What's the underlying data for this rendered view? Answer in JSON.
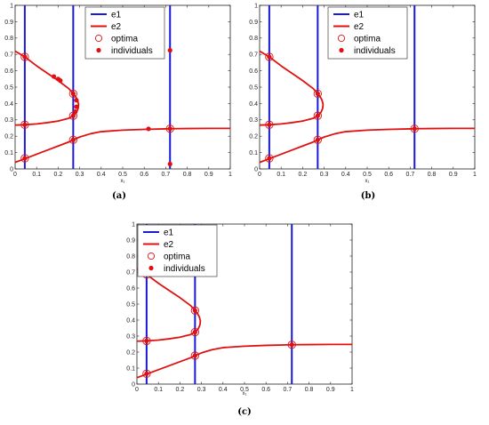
{
  "chart_data": [
    {
      "type": "line",
      "caption": "(a)",
      "xlabel": "x₁",
      "ylabel": "",
      "xlim": [
        0,
        1
      ],
      "ylim": [
        0,
        1
      ],
      "x_ticks": [
        "0",
        "0.1",
        "0.2",
        "0.3",
        "0.4",
        "0.5",
        "0.6",
        "0.7",
        "0.8",
        "0.9",
        "1"
      ],
      "y_ticks": [
        "0",
        "0.1",
        "0.2",
        "0.3",
        "0.4",
        "0.5",
        "0.6",
        "0.7",
        "0.8",
        "0.9",
        "1"
      ],
      "grid": false,
      "legend_position": "top-center",
      "legend": [
        "e1",
        "e2",
        "optima",
        "individuals"
      ],
      "colors": {
        "e1": "#1a1ad6",
        "e2": "#e01010",
        "markers": "#e01010"
      },
      "series": [
        {
          "name": "e1",
          "style": "vertical lines",
          "x": [
            0.045,
            0.27,
            0.72
          ]
        },
        {
          "name": "e2",
          "style": "curves",
          "branches": {
            "lower": [
              [
                0,
                0.04
              ],
              [
                0.05,
                0.065
              ],
              [
                0.1,
                0.09
              ],
              [
                0.15,
                0.115
              ],
              [
                0.2,
                0.14
              ],
              [
                0.25,
                0.165
              ],
              [
                0.27,
                0.178
              ],
              [
                0.3,
                0.195
              ],
              [
                0.35,
                0.215
              ],
              [
                0.4,
                0.228
              ],
              [
                0.5,
                0.237
              ],
              [
                0.6,
                0.242
              ],
              [
                0.7,
                0.245
              ],
              [
                0.72,
                0.246
              ],
              [
                0.8,
                0.247
              ],
              [
                0.9,
                0.248
              ],
              [
                1,
                0.248
              ]
            ],
            "fold": [
              [
                0,
                0.268
              ],
              [
                0.045,
                0.27
              ],
              [
                0.1,
                0.275
              ],
              [
                0.15,
                0.283
              ],
              [
                0.2,
                0.293
              ],
              [
                0.25,
                0.31
              ],
              [
                0.27,
                0.325
              ],
              [
                0.285,
                0.345
              ],
              [
                0.293,
                0.37
              ],
              [
                0.295,
                0.395
              ],
              [
                0.29,
                0.42
              ],
              [
                0.282,
                0.44
              ],
              [
                0.27,
                0.46
              ],
              [
                0.25,
                0.49
              ],
              [
                0.2,
                0.54
              ],
              [
                0.15,
                0.585
              ],
              [
                0.1,
                0.63
              ],
              [
                0.045,
                0.685
              ],
              [
                0,
                0.72
              ]
            ]
          }
        },
        {
          "name": "optima",
          "points": [
            [
              0.045,
              0.065
            ],
            [
              0.045,
              0.27
            ],
            [
              0.045,
              0.685
            ],
            [
              0.27,
              0.178
            ],
            [
              0.27,
              0.325
            ],
            [
              0.27,
              0.46
            ],
            [
              0.72,
              0.246
            ]
          ]
        },
        {
          "name": "individuals",
          "points": [
            [
              0.045,
              0.065
            ],
            [
              0.045,
              0.27
            ],
            [
              0.045,
              0.685
            ],
            [
              0.18,
              0.565
            ],
            [
              0.2,
              0.55
            ],
            [
              0.21,
              0.54
            ],
            [
              0.27,
              0.178
            ],
            [
              0.27,
              0.325
            ],
            [
              0.28,
              0.35
            ],
            [
              0.285,
              0.38
            ],
            [
              0.285,
              0.42
            ],
            [
              0.27,
              0.46
            ],
            [
              0.62,
              0.245
            ],
            [
              0.72,
              0.246
            ],
            [
              0.72,
              0.725
            ],
            [
              0.72,
              0.03
            ]
          ]
        }
      ]
    },
    {
      "type": "line",
      "caption": "(b)",
      "xlabel": "x₁",
      "ylabel": "",
      "xlim": [
        0,
        1
      ],
      "ylim": [
        0,
        1
      ],
      "x_ticks": [
        "0",
        "0.1",
        "0.2",
        "0.3",
        "0.4",
        "0.5",
        "0.6",
        "0.7",
        "0.8",
        "0.9",
        "1"
      ],
      "y_ticks": [
        "0",
        "0.1",
        "0.2",
        "0.3",
        "0.4",
        "0.5",
        "0.6",
        "0.7",
        "0.8",
        "0.9",
        "1"
      ],
      "grid": false,
      "legend_position": "top-center",
      "legend": [
        "e1",
        "e2",
        "optima",
        "individuals"
      ],
      "colors": {
        "e1": "#1a1ad6",
        "e2": "#e01010",
        "markers": "#e01010"
      },
      "series": [
        {
          "name": "e1",
          "style": "vertical lines",
          "x": [
            0.045,
            0.27,
            0.72
          ]
        },
        {
          "name": "e2",
          "style": "curves",
          "branches": "same as (a)"
        },
        {
          "name": "optima",
          "points": [
            [
              0.045,
              0.065
            ],
            [
              0.045,
              0.27
            ],
            [
              0.045,
              0.685
            ],
            [
              0.27,
              0.178
            ],
            [
              0.27,
              0.325
            ],
            [
              0.27,
              0.46
            ],
            [
              0.72,
              0.246
            ]
          ]
        },
        {
          "name": "individuals",
          "points": [
            [
              0.045,
              0.065
            ],
            [
              0.045,
              0.27
            ],
            [
              0.045,
              0.685
            ],
            [
              0.27,
              0.178
            ],
            [
              0.27,
              0.325
            ],
            [
              0.27,
              0.46
            ],
            [
              0.72,
              0.246
            ]
          ]
        }
      ]
    },
    {
      "type": "line",
      "caption": "(c)",
      "xlabel": "x₁",
      "ylabel": "",
      "xlim": [
        0,
        1
      ],
      "ylim": [
        0,
        1
      ],
      "x_ticks": [
        "0",
        "0.1",
        "0.2",
        "0.3",
        "0.4",
        "0.5",
        "0.6",
        "0.7",
        "0.8",
        "0.9",
        "1"
      ],
      "y_ticks": [
        "0",
        "0.1",
        "0.2",
        "0.3",
        "0.4",
        "0.5",
        "0.6",
        "0.7",
        "0.8",
        "0.9",
        "1"
      ],
      "grid": false,
      "legend_position": "top-left",
      "legend": [
        "e1",
        "e2",
        "optima",
        "individuals"
      ],
      "colors": {
        "e1": "#1a1ad6",
        "e2": "#e01010",
        "markers": "#e01010"
      },
      "series": [
        {
          "name": "e1",
          "style": "vertical lines",
          "x": [
            0.045,
            0.27,
            0.72
          ]
        },
        {
          "name": "e2",
          "style": "curves",
          "branches": "same as (a)"
        },
        {
          "name": "optima",
          "points": [
            [
              0.045,
              0.065
            ],
            [
              0.045,
              0.27
            ],
            [
              0.045,
              0.685
            ],
            [
              0.27,
              0.178
            ],
            [
              0.27,
              0.325
            ],
            [
              0.27,
              0.46
            ],
            [
              0.72,
              0.246
            ]
          ]
        },
        {
          "name": "individuals",
          "points": [
            [
              0.045,
              0.065
            ],
            [
              0.045,
              0.27
            ],
            [
              0.045,
              0.685
            ],
            [
              0.27,
              0.178
            ],
            [
              0.27,
              0.325
            ],
            [
              0.27,
              0.46
            ],
            [
              0.72,
              0.246
            ]
          ]
        }
      ]
    }
  ]
}
